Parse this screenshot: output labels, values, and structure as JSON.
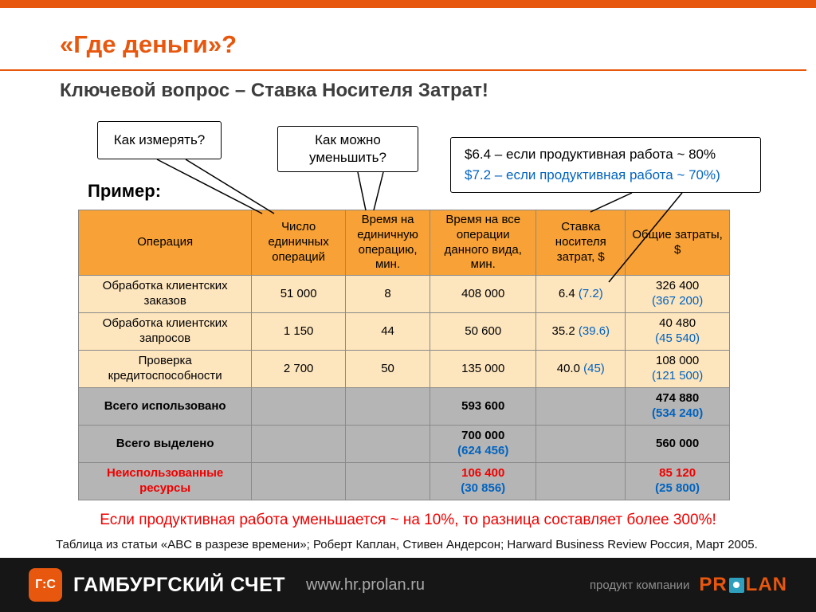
{
  "colors": {
    "accent_orange": "#E8570E",
    "table_header_orange": "#F7A136",
    "row_cream": "#FDE5BE",
    "row_gray": "#B5B5B5",
    "value_blue": "#0063C0",
    "alert_red": "#F00000",
    "footer_black": "#161616"
  },
  "slide": {
    "title": "«Где деньги»?",
    "subtitle": "Ключевой вопрос – Ставка Носителя Затрат!",
    "example_label": "Пример:",
    "conclusion": "Если продуктивная работа уменьшается ~ на 10%, то разница составляет более 300%!",
    "source": "Таблица из статьи «ABC в разрезе времени»; Роберт Каплан, Стивен Андерсон; Harward Business Review Россия, Март 2005."
  },
  "callouts": {
    "measure": "Как измерять?",
    "reduce": "Как можно уменьшить?",
    "rate_line1": "$6.4 – если продуктивная работа ~ 80%",
    "rate_line2": "$7.2 – если продуктивная работа ~ 70%)"
  },
  "table": {
    "headers": [
      "Операция",
      "Число единичных операций",
      "Время на единичную операцию, мин.",
      "Время на все операции данного вида, мин.",
      "Ставка носителя затрат, $",
      "Общие затраты, $"
    ],
    "rows": [
      {
        "label": "Обработка клиентских заказов",
        "style": "data",
        "cells": [
          {
            "main": "51 000"
          },
          {
            "main": "8"
          },
          {
            "main": "408 000"
          },
          {
            "main": "6.4",
            "paren": "(7.2)",
            "inline": true
          },
          {
            "main": "326 400",
            "paren": "(367 200)"
          }
        ]
      },
      {
        "label": "Обработка клиентских запросов",
        "style": "data",
        "cells": [
          {
            "main": "1 150"
          },
          {
            "main": "44"
          },
          {
            "main": "50 600"
          },
          {
            "main": "35.2",
            "paren": "(39.6)",
            "inline": true
          },
          {
            "main": "40 480",
            "paren": "(45 540)"
          }
        ]
      },
      {
        "label": "Проверка кредитоспособности",
        "style": "data",
        "cells": [
          {
            "main": "2 700"
          },
          {
            "main": "50"
          },
          {
            "main": "135 000"
          },
          {
            "main": "40.0",
            "paren": "(45)",
            "inline": true
          },
          {
            "main": "108 000",
            "paren": "(121 500)"
          }
        ]
      },
      {
        "label": "Всего использовано",
        "style": "total",
        "cells": [
          {},
          {},
          {
            "main": "593 600"
          },
          {},
          {
            "main": "474 880",
            "paren": "(534 240)"
          }
        ]
      },
      {
        "label": "Всего выделено",
        "style": "total",
        "cells": [
          {},
          {},
          {
            "main": "700 000",
            "paren": "(624 456)"
          },
          {},
          {
            "main": "560 000"
          }
        ]
      },
      {
        "label": "Неиспользованные ресурсы",
        "style": "unused",
        "cells": [
          {},
          {},
          {
            "main": "106 400",
            "paren": "(30 856)"
          },
          {},
          {
            "main": "85 120",
            "paren": "(25 800)"
          }
        ]
      }
    ]
  },
  "footer": {
    "logo_monogram": "Г:С",
    "brand": "ГАМБУРГСКИЙ СЧЕТ",
    "url": "www.hr.prolan.ru",
    "product_note": "продукт компании",
    "brand_pr": "PR",
    "brand_lan": "LAN"
  }
}
